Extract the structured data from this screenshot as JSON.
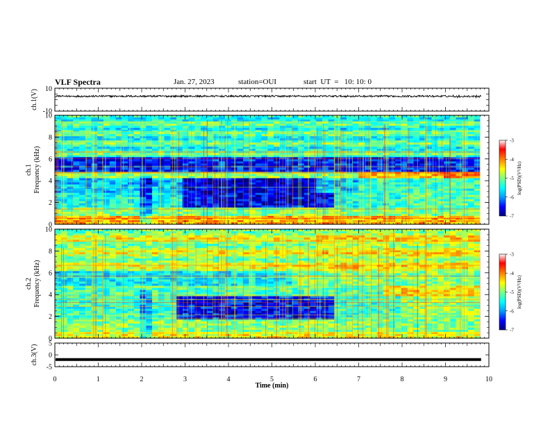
{
  "header": {
    "title": "VLF Spectra",
    "date": "Jan. 27, 2023",
    "station": "station=OUI",
    "start": "start  UT  =   10: 10: 0"
  },
  "chart_data": [
    {
      "type": "line",
      "panel": "ch1-waveform",
      "ylabel": "ch.1(V)",
      "ylim": [
        -10,
        10
      ],
      "yticks": [
        "10",
        "-10"
      ],
      "xlim": [
        0,
        10
      ],
      "description_level": "noisy signal around about 3 V"
    },
    {
      "type": "heatmap",
      "panel": "ch1-spectrogram",
      "ylabel": "Frequency (kHz)",
      "ylabel2": "ch.1",
      "ylim": [
        0,
        10
      ],
      "yticks": [
        "0",
        "2",
        "4",
        "6",
        "8",
        "10"
      ],
      "xlim": [
        0,
        10
      ],
      "colorbar": {
        "label": "log(PSD)(V²/Hz)",
        "range": [
          -7,
          -3
        ],
        "ticks": [
          "-3",
          "-4",
          "-5",
          "-6",
          "-7"
        ],
        "colors": [
          "#000080",
          "#0000ff",
          "#00a0ff",
          "#00ffff",
          "#80ff80",
          "#ffff00",
          "#ff8000",
          "#ff0000",
          "#ffffff"
        ]
      }
    },
    {
      "type": "heatmap",
      "panel": "ch2-spectrogram",
      "ylabel": "Frequency (kHz)",
      "ylabel2": "ch.2",
      "ylim": [
        0,
        10
      ],
      "yticks": [
        "0",
        "2",
        "4",
        "6",
        "8",
        "10"
      ],
      "xlim": [
        0,
        10
      ],
      "colorbar": {
        "label": "log(PSD)(V²/Hz)",
        "range": [
          -7,
          -3
        ],
        "ticks": [
          "-3",
          "-4",
          "-5",
          "-6",
          "-7"
        ],
        "colors": [
          "#000080",
          "#0000ff",
          "#00a0ff",
          "#00ffff",
          "#80ff80",
          "#ffff00",
          "#ff8000",
          "#ff0000",
          "#ffffff"
        ]
      }
    },
    {
      "type": "line",
      "panel": "ch3-waveform",
      "ylabel": "ch.3(V)",
      "ylim": [
        -5,
        5
      ],
      "yticks": [
        "5",
        "0",
        "-5"
      ],
      "xlim": [
        0,
        10
      ],
      "level": -2
    }
  ],
  "xaxis": {
    "label": "Time  (min)",
    "ticks": [
      "0",
      "1",
      "2",
      "3",
      "4",
      "5",
      "6",
      "7",
      "8",
      "9",
      "10"
    ]
  }
}
